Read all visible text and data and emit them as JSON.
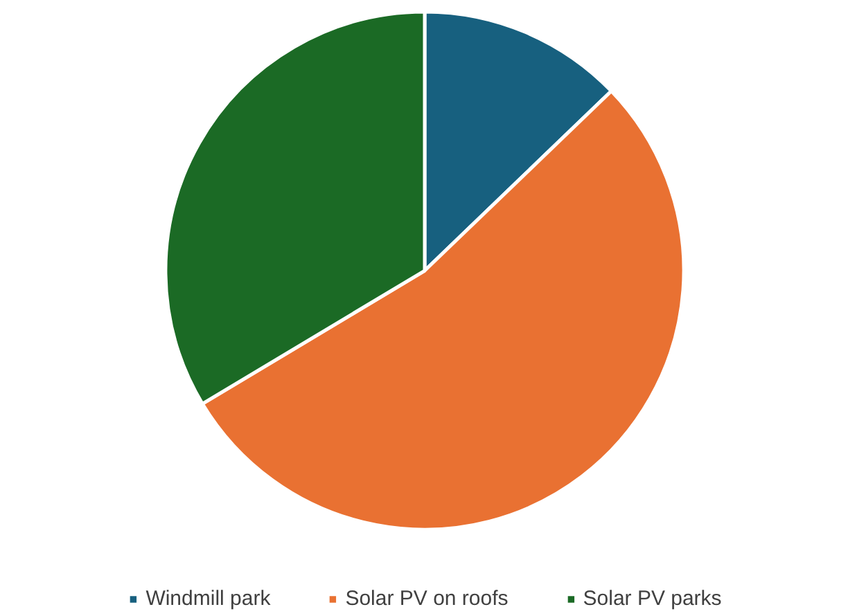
{
  "chart_data": {
    "type": "pie",
    "categories": [
      "Windmill park",
      "Solar PV on roofs",
      "Solar PV parks"
    ],
    "values": [
      12.8,
      53.6,
      33.6
    ],
    "colors": [
      "#17607f",
      "#e97132",
      "#1b6a25"
    ],
    "legend": "bottom"
  }
}
